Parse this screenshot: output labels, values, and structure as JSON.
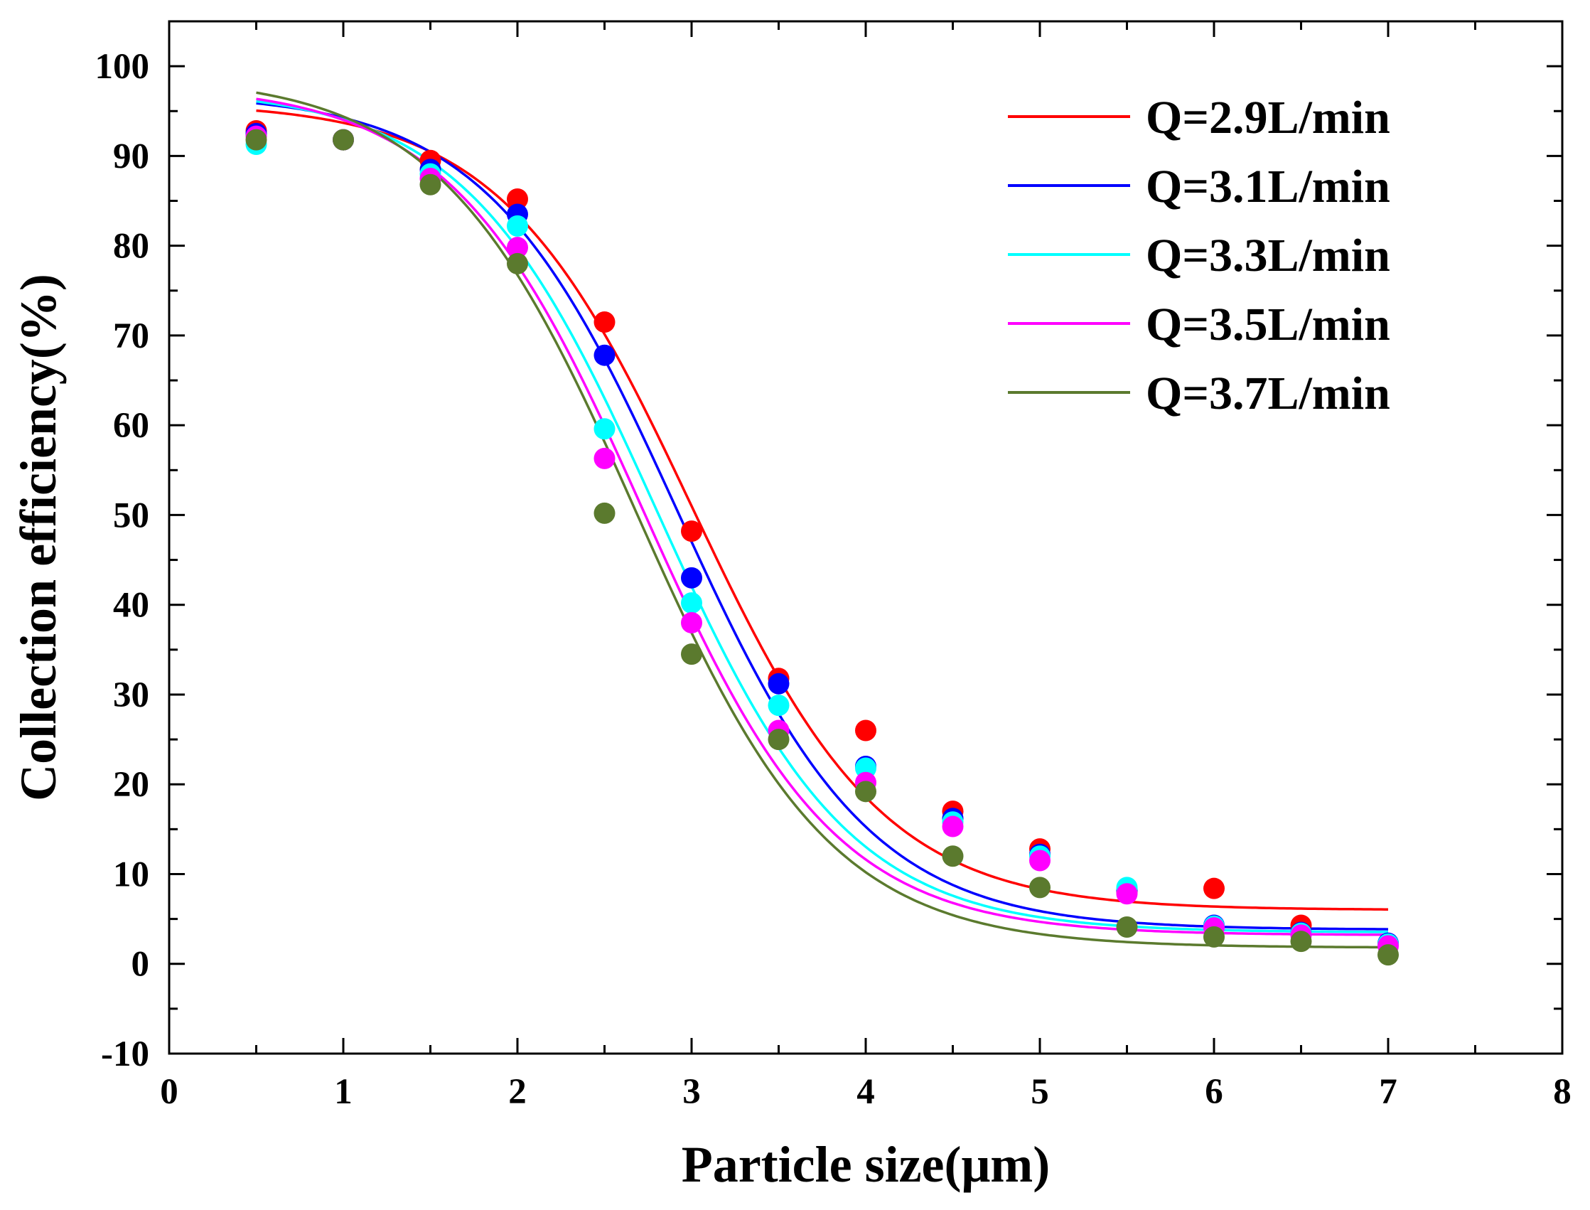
{
  "chart_data": {
    "type": "scatter",
    "xlabel": "Particle size(μm)",
    "ylabel": "Collection efficiency(%)",
    "xlim": [
      0,
      8
    ],
    "ylim": [
      -10,
      105
    ],
    "xticks": [
      0,
      1,
      2,
      3,
      4,
      5,
      6,
      7,
      8
    ],
    "yticks": [
      -10,
      0,
      10,
      20,
      30,
      40,
      50,
      60,
      70,
      80,
      90,
      100
    ],
    "legend_position": "top-right",
    "x": [
      0.5,
      1,
      1.5,
      2,
      2.5,
      3,
      3.5,
      4,
      4.5,
      5,
      5.5,
      6,
      6.5,
      7
    ],
    "series": [
      {
        "name": "Q=2.9L/min",
        "color": "#ff0000",
        "values": [
          92.8,
          91.8,
          89.5,
          85.2,
          71.5,
          48.2,
          31.8,
          26.0,
          17.0,
          12.8,
          8.0,
          8.4,
          4.3,
          2.2
        ],
        "fit": {
          "A1": 96,
          "A2": 6,
          "x0": 3.0,
          "dx": 0.55
        }
      },
      {
        "name": "Q=3.1L/min",
        "color": "#0000ff",
        "values": [
          92.5,
          91.8,
          88.5,
          83.5,
          67.8,
          43.0,
          31.2,
          22.0,
          16.2,
          12.2,
          8.2,
          4.3,
          3.5,
          2.3
        ],
        "fit": {
          "A1": 97,
          "A2": 3.8,
          "x0": 2.92,
          "dx": 0.55
        }
      },
      {
        "name": "Q=3.3L/min",
        "color": "#00ffff",
        "values": [
          91.3,
          91.8,
          88.0,
          82.2,
          59.6,
          40.2,
          28.8,
          21.8,
          15.8,
          12.0,
          8.5,
          4.2,
          3.4,
          2.2
        ],
        "fit": {
          "A1": 97.5,
          "A2": 3.5,
          "x0": 2.8,
          "dx": 0.55
        }
      },
      {
        "name": "Q=3.5L/min",
        "color": "#ff00ff",
        "values": [
          92.2,
          91.8,
          87.5,
          79.8,
          56.3,
          38.0,
          26.0,
          20.2,
          15.3,
          11.5,
          7.8,
          4.0,
          3.2,
          2.0
        ],
        "fit": {
          "A1": 98,
          "A2": 3.2,
          "x0": 2.72,
          "dx": 0.55
        }
      },
      {
        "name": "Q=3.7L/min",
        "color": "#5b7a2e",
        "values": [
          91.8,
          91.8,
          86.8,
          78.0,
          50.2,
          34.5,
          25.0,
          19.2,
          12.0,
          8.5,
          4.1,
          3.0,
          2.5,
          1.0
        ],
        "fit": {
          "A1": 99,
          "A2": 1.8,
          "x0": 2.68,
          "dx": 0.56
        }
      }
    ]
  }
}
